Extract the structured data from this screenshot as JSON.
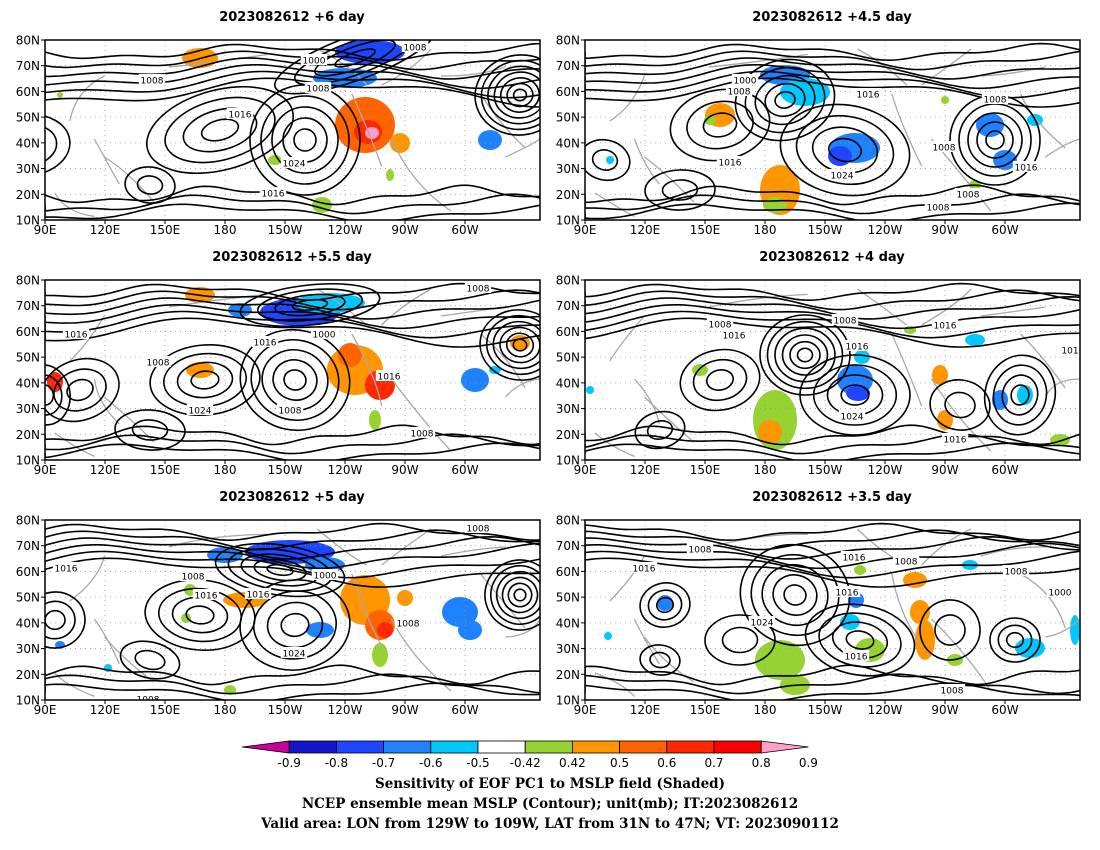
{
  "panels": [
    {
      "title": "2023082612 +6 day",
      "contour_labels": [
        "1008",
        "1000",
        "1008",
        "1008",
        "1016",
        "1024",
        "1016"
      ]
    },
    {
      "title": "2023082612 +4.5 day",
      "contour_labels": [
        "1000",
        "1008",
        "1016",
        "1008",
        "1016",
        "1024",
        "1008",
        "1016",
        "1008",
        "1008"
      ]
    },
    {
      "title": "2023082612 +5.5 day",
      "contour_labels": [
        "1008",
        "1016",
        "1000",
        "1016",
        "1008",
        "1016",
        "1024",
        "1008",
        "1008"
      ]
    },
    {
      "title": "2023082612 +4 day",
      "contour_labels": [
        "1008",
        "1016",
        "1008",
        "1016",
        "1016",
        "1024",
        "1016",
        "101"
      ]
    },
    {
      "title": "2023082612 +5 day",
      "contour_labels": [
        "1008",
        "1016",
        "1008",
        "1000",
        "1016",
        "1016",
        "1024",
        "1008",
        "1008"
      ]
    },
    {
      "title": "2023082612 +3.5 day",
      "contour_labels": [
        "1008",
        "1016",
        "1008",
        "1016",
        "1008",
        "1016",
        "1000",
        "1024",
        "1016",
        "1008"
      ]
    }
  ],
  "axes": {
    "lat_ticks": [
      "80N",
      "70N",
      "60N",
      "50N",
      "40N",
      "30N",
      "20N",
      "10N"
    ],
    "lon_ticks": [
      "90E",
      "120E",
      "150E",
      "180",
      "150W",
      "120W",
      "90W",
      "60W"
    ]
  },
  "colorbar": {
    "colors": [
      "#c8009c",
      "#1414c8",
      "#1e46ff",
      "#1e82ff",
      "#00c8ff",
      "#ffffff",
      "#96d232",
      "#ff9600",
      "#ff6400",
      "#ff2800",
      "#ff0000",
      "#ffa0c8"
    ],
    "labels": [
      "-0.9",
      "-0.8",
      "-0.7",
      "-0.6",
      "-0.5",
      "-0.42",
      "0.42",
      "0.5",
      "0.6",
      "0.7",
      "0.8",
      "0.9"
    ]
  },
  "caption": {
    "line1": "Sensitivity of EOF PC1 to MSLP field (Shaded)",
    "line2": "NCEP ensemble mean MSLP (Contour); unit(mb); IT:2023082612",
    "line3": "Valid area: LON from 129W to 109W, LAT from 31N to 47N; VT: 2023090112"
  }
}
